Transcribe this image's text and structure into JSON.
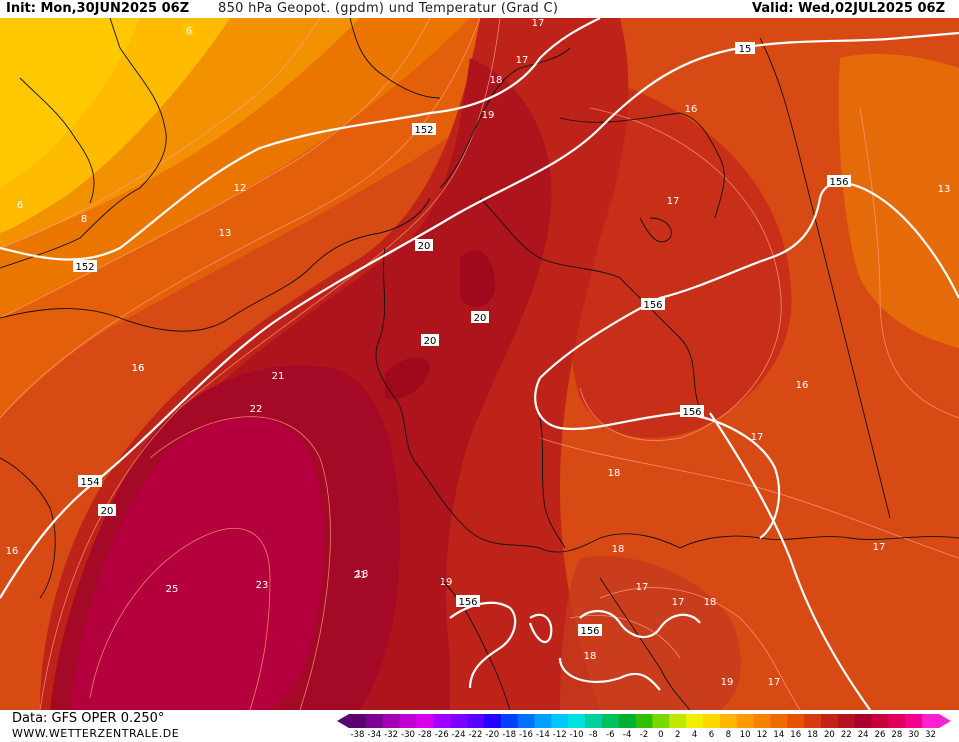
{
  "header": {
    "init": "Init: Mon,30JUN2025 06Z",
    "title": "850 hPa Geopot. (gpdm) und Temperatur (Grad C)",
    "valid": "Valid: Wed,02JUL2025 06Z"
  },
  "footer": {
    "data_source": "Data: GFS OPER 0.250°",
    "website": "WWW.WETTERZENTRALE.DE"
  },
  "legend": {
    "unit": "Grad C",
    "values": [
      "-38",
      "-34",
      "-32",
      "-30",
      "-28",
      "-26",
      "-24",
      "-22",
      "-20",
      "-18",
      "-16",
      "-14",
      "-12",
      "-10",
      "-8",
      "-6",
      "-4",
      "-2",
      "0",
      "2",
      "4",
      "6",
      "8",
      "10",
      "12",
      "14",
      "16",
      "18",
      "20",
      "22",
      "24",
      "26",
      "28",
      "30",
      "32"
    ],
    "colors": [
      "#5a0070",
      "#7d0092",
      "#a100b5",
      "#c000d0",
      "#d800e8",
      "#a400ff",
      "#7e00ff",
      "#5a00ff",
      "#2400ff",
      "#0040ff",
      "#0070ff",
      "#00a0ff",
      "#00c8ff",
      "#00e0e0",
      "#00d0a0",
      "#00c060",
      "#00b030",
      "#30c000",
      "#78d800",
      "#c0e800",
      "#f0f000",
      "#ffd800",
      "#ffb800",
      "#ff9a00",
      "#f58200",
      "#ef6a00",
      "#e65200",
      "#d83a10",
      "#c42418",
      "#b01420",
      "#a8002c",
      "#c80040",
      "#e0005c",
      "#f40090",
      "#ff20d0"
    ]
  },
  "map": {
    "geopotential_labels": [
      "152",
      "152",
      "154",
      "156",
      "156",
      "156",
      "156",
      "156",
      "15"
    ],
    "temperature_labels": [
      "6",
      "6",
      "8",
      "12",
      "13",
      "16",
      "20",
      "20",
      "20",
      "21",
      "22",
      "25",
      "23",
      "21",
      "20",
      "16",
      "17",
      "17",
      "18",
      "19",
      "16",
      "17",
      "13",
      "16",
      "17",
      "18",
      "18",
      "17",
      "17",
      "18",
      "18",
      "19",
      "19",
      "17",
      "17",
      "18",
      "16"
    ]
  }
}
